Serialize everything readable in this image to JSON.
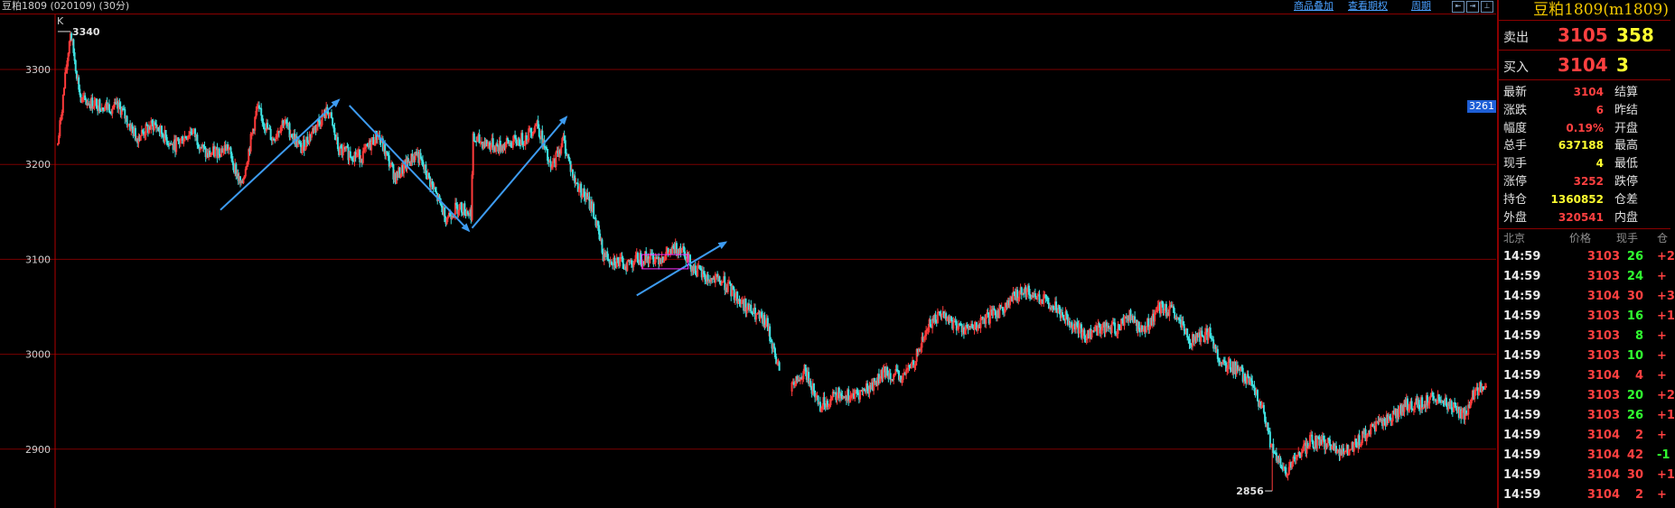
{
  "header": {
    "title": "豆粕1809 (020109) (30分)",
    "links": [
      "商品叠加",
      "查看期权",
      "周期"
    ],
    "buttons": [
      "⇤",
      "⇥",
      "⊥"
    ]
  },
  "chart_data": {
    "type": "candlestick",
    "title": "豆粕1809 (020109) (30分)",
    "corner_label": "K",
    "yticks": [
      3300,
      3200,
      3100,
      3000,
      2900
    ],
    "ylim": [
      2838,
      3358
    ],
    "grid": true,
    "high_marker": {
      "value": 3340,
      "label": "3340"
    },
    "low_marker": {
      "value": 2856,
      "label": "2856"
    },
    "current_tag": {
      "value": 3261,
      "label": "3261"
    },
    "price_path": [
      [
        0,
        3210,
        3232
      ],
      [
        12,
        3340,
        3340
      ],
      [
        22,
        3262,
        3272
      ],
      [
        60,
        3255,
        3262
      ],
      [
        75,
        3225,
        3232
      ],
      [
        92,
        3238,
        3247
      ],
      [
        110,
        3215,
        3222
      ],
      [
        128,
        3232,
        3240
      ],
      [
        142,
        3205,
        3213
      ],
      [
        162,
        3215,
        3222
      ],
      [
        175,
        3172,
        3180
      ],
      [
        190,
        3255,
        3262
      ],
      [
        205,
        3222,
        3230
      ],
      [
        215,
        3242,
        3250
      ],
      [
        232,
        3212,
        3220
      ],
      [
        248,
        3240,
        3248
      ],
      [
        258,
        3252,
        3262
      ],
      [
        268,
        3210,
        3218
      ],
      [
        290,
        3205,
        3212
      ],
      [
        305,
        3228,
        3236
      ],
      [
        322,
        3182,
        3190
      ],
      [
        342,
        3208,
        3216
      ],
      [
        355,
        3178,
        3186
      ],
      [
        370,
        3140,
        3148
      ],
      [
        382,
        3152,
        3160
      ],
      [
        394,
        3145,
        3152
      ],
      [
        396,
        3222,
        3230
      ],
      [
        420,
        3215,
        3222
      ],
      [
        445,
        3222,
        3232
      ],
      [
        457,
        3240,
        3248
      ],
      [
        470,
        3190,
        3198
      ],
      [
        482,
        3222,
        3230
      ],
      [
        492,
        3180,
        3188
      ],
      [
        510,
        3150,
        3158
      ],
      [
        520,
        3100,
        3110
      ],
      [
        540,
        3090,
        3098
      ],
      [
        555,
        3098,
        3105
      ],
      [
        575,
        3098,
        3106
      ],
      [
        595,
        3110,
        3118
      ],
      [
        605,
        3088,
        3096
      ],
      [
        620,
        3075,
        3083
      ],
      [
        635,
        3072,
        3080
      ],
      [
        648,
        3055,
        3063
      ],
      [
        662,
        3040,
        3048
      ],
      [
        676,
        3028,
        3035
      ],
      [
        688,
        2978,
        2985
      ],
      [
        700,
        2960,
        2968
      ],
      [
        712,
        2978,
        2986
      ],
      [
        727,
        2942,
        2950
      ],
      [
        745,
        2955,
        2962
      ],
      [
        760,
        2952,
        2960
      ],
      [
        775,
        2962,
        2970
      ],
      [
        790,
        2978,
        2986
      ],
      [
        805,
        2970,
        2978
      ],
      [
        818,
        2992,
        3000
      ],
      [
        830,
        3025,
        3035
      ],
      [
        842,
        3040,
        3048
      ],
      [
        858,
        3025,
        3033
      ],
      [
        872,
        3022,
        3030
      ],
      [
        888,
        3035,
        3042
      ],
      [
        905,
        3048,
        3056
      ],
      [
        920,
        3065,
        3073
      ],
      [
        936,
        3055,
        3063
      ],
      [
        950,
        3048,
        3056
      ],
      [
        966,
        3030,
        3038
      ],
      [
        980,
        3015,
        3023
      ],
      [
        995,
        3025,
        3033
      ],
      [
        1010,
        3022,
        3030
      ],
      [
        1020,
        3038,
        3046
      ],
      [
        1035,
        3020,
        3028
      ],
      [
        1050,
        3045,
        3053
      ],
      [
        1063,
        3040,
        3048
      ],
      [
        1080,
        3010,
        3018
      ],
      [
        1098,
        3018,
        3026
      ],
      [
        1110,
        2985,
        2993
      ],
      [
        1123,
        2982,
        2990
      ],
      [
        1137,
        2965,
        2973
      ],
      [
        1148,
        2940,
        2948
      ],
      [
        1158,
        2895,
        2903
      ],
      [
        1170,
        2870,
        2878
      ],
      [
        1180,
        2885,
        2893
      ],
      [
        1195,
        2905,
        2913
      ],
      [
        1210,
        2902,
        2910
      ],
      [
        1225,
        2892,
        2900
      ],
      [
        1240,
        2905,
        2913
      ],
      [
        1255,
        2918,
        2926
      ],
      [
        1270,
        2930,
        2938
      ],
      [
        1285,
        2942,
        2950
      ],
      [
        1300,
        2945,
        2953
      ],
      [
        1315,
        2952,
        2960
      ],
      [
        1328,
        2940,
        2948
      ],
      [
        1342,
        2932,
        2940
      ],
      [
        1352,
        2960,
        2968
      ],
      [
        1362,
        2958,
        2966
      ]
    ],
    "gaps": [
      [
        688,
        700
      ]
    ],
    "annotations": [
      {
        "type": "arrow",
        "from": [
          155,
          3152
        ],
        "to": [
          268,
          3268
        ]
      },
      {
        "type": "arrow",
        "from": [
          278,
          3262
        ],
        "to": [
          392,
          3130
        ]
      },
      {
        "type": "arrow",
        "from": [
          395,
          3133
        ],
        "to": [
          485,
          3250
        ]
      },
      {
        "type": "arrow",
        "from": [
          552,
          3062
        ],
        "to": [
          637,
          3118
        ]
      },
      {
        "type": "box",
        "x": [
          557,
          601
        ],
        "y": [
          3090,
          3105
        ]
      }
    ]
  },
  "panel": {
    "title": "豆粕1809(m1809)",
    "sell": {
      "label": "卖出",
      "price": "3105",
      "volume": "358"
    },
    "buy": {
      "label": "买入",
      "price": "3104",
      "volume": "3"
    },
    "stats": [
      {
        "k1": "最新",
        "v1": "3104",
        "c1": "#ff4040",
        "k2": "结算"
      },
      {
        "k1": "涨跌",
        "v1": "6",
        "c1": "#ff4040",
        "k2": "昨结"
      },
      {
        "k1": "幅度",
        "v1": "0.19%",
        "c1": "#ff4040",
        "k2": "开盘"
      },
      {
        "k1": "总手",
        "v1": "637188",
        "c1": "#ffff30",
        "k2": "最高"
      },
      {
        "k1": "现手",
        "v1": "4",
        "c1": "#ffff30",
        "k2": "最低"
      },
      {
        "k1": "涨停",
        "v1": "3252",
        "c1": "#ff4040",
        "k2": "跌停"
      },
      {
        "k1": "持仓",
        "v1": "1360852",
        "c1": "#ffff30",
        "k2": "仓差"
      },
      {
        "k1": "外盘",
        "v1": "320541",
        "c1": "#ff4040",
        "k2": "内盘"
      }
    ],
    "tick_headers": {
      "time": "北京",
      "price": "价格",
      "volume": "现手",
      "oi": "仓"
    },
    "ticks": [
      {
        "time": "14:59",
        "price": "3103",
        "volume": "26",
        "vcolor": "#30ff30",
        "oi": "+2"
      },
      {
        "time": "14:59",
        "price": "3103",
        "volume": "24",
        "vcolor": "#30ff30",
        "oi": "+"
      },
      {
        "time": "14:59",
        "price": "3104",
        "volume": "30",
        "vcolor": "#ff4040",
        "oi": "+3"
      },
      {
        "time": "14:59",
        "price": "3103",
        "volume": "16",
        "vcolor": "#30ff30",
        "oi": "+1"
      },
      {
        "time": "14:59",
        "price": "3103",
        "volume": "8",
        "vcolor": "#30ff30",
        "oi": "+"
      },
      {
        "time": "14:59",
        "price": "3103",
        "volume": "10",
        "vcolor": "#30ff30",
        "oi": "+"
      },
      {
        "time": "14:59",
        "price": "3104",
        "volume": "4",
        "vcolor": "#ff4040",
        "oi": "+"
      },
      {
        "time": "14:59",
        "price": "3103",
        "volume": "20",
        "vcolor": "#30ff30",
        "oi": "+2"
      },
      {
        "time": "14:59",
        "price": "3103",
        "volume": "26",
        "vcolor": "#30ff30",
        "oi": "+1"
      },
      {
        "time": "14:59",
        "price": "3104",
        "volume": "2",
        "vcolor": "#ff4040",
        "oi": "+"
      },
      {
        "time": "14:59",
        "price": "3104",
        "volume": "42",
        "vcolor": "#ff4040",
        "oi": "-1"
      },
      {
        "time": "14:59",
        "price": "3104",
        "volume": "30",
        "vcolor": "#ff4040",
        "oi": "+1"
      },
      {
        "time": "14:59",
        "price": "3104",
        "volume": "2",
        "vcolor": "#ff4040",
        "oi": "+"
      }
    ]
  }
}
